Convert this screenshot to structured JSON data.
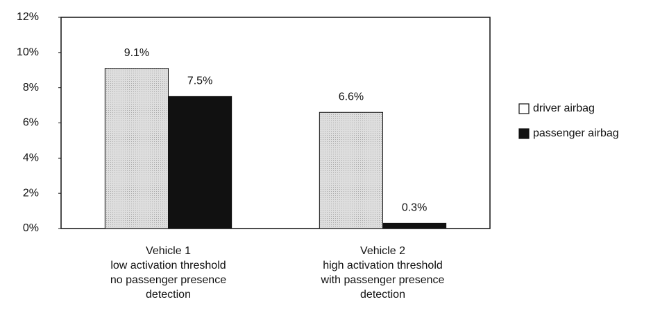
{
  "chart_data": {
    "type": "bar",
    "categories": [
      "Vehicle 1\nlow activation threshold\nno passenger presence\ndetection",
      "Vehicle 2\nhigh activation threshold\nwith passenger presence\ndetection"
    ],
    "series": [
      {
        "name": "driver airbag",
        "color": "#d6d6d6",
        "values": [
          9.1,
          6.6
        ],
        "value_labels": [
          "9.1%",
          "6.6%"
        ]
      },
      {
        "name": "passenger airbag",
        "color": "#111111",
        "values": [
          7.5,
          0.3
        ],
        "value_labels": [
          "7.5%",
          "0.3%"
        ]
      }
    ],
    "ylim": [
      0,
      12
    ],
    "yticks": [
      {
        "value": 0,
        "label": "0%"
      },
      {
        "value": 2,
        "label": "2%"
      },
      {
        "value": 4,
        "label": "4%"
      },
      {
        "value": 6,
        "label": "6%"
      },
      {
        "value": 8,
        "label": "8%"
      },
      {
        "value": 10,
        "label": "10%"
      },
      {
        "value": 12,
        "label": "12%"
      }
    ],
    "grid": false,
    "legend": "right"
  }
}
